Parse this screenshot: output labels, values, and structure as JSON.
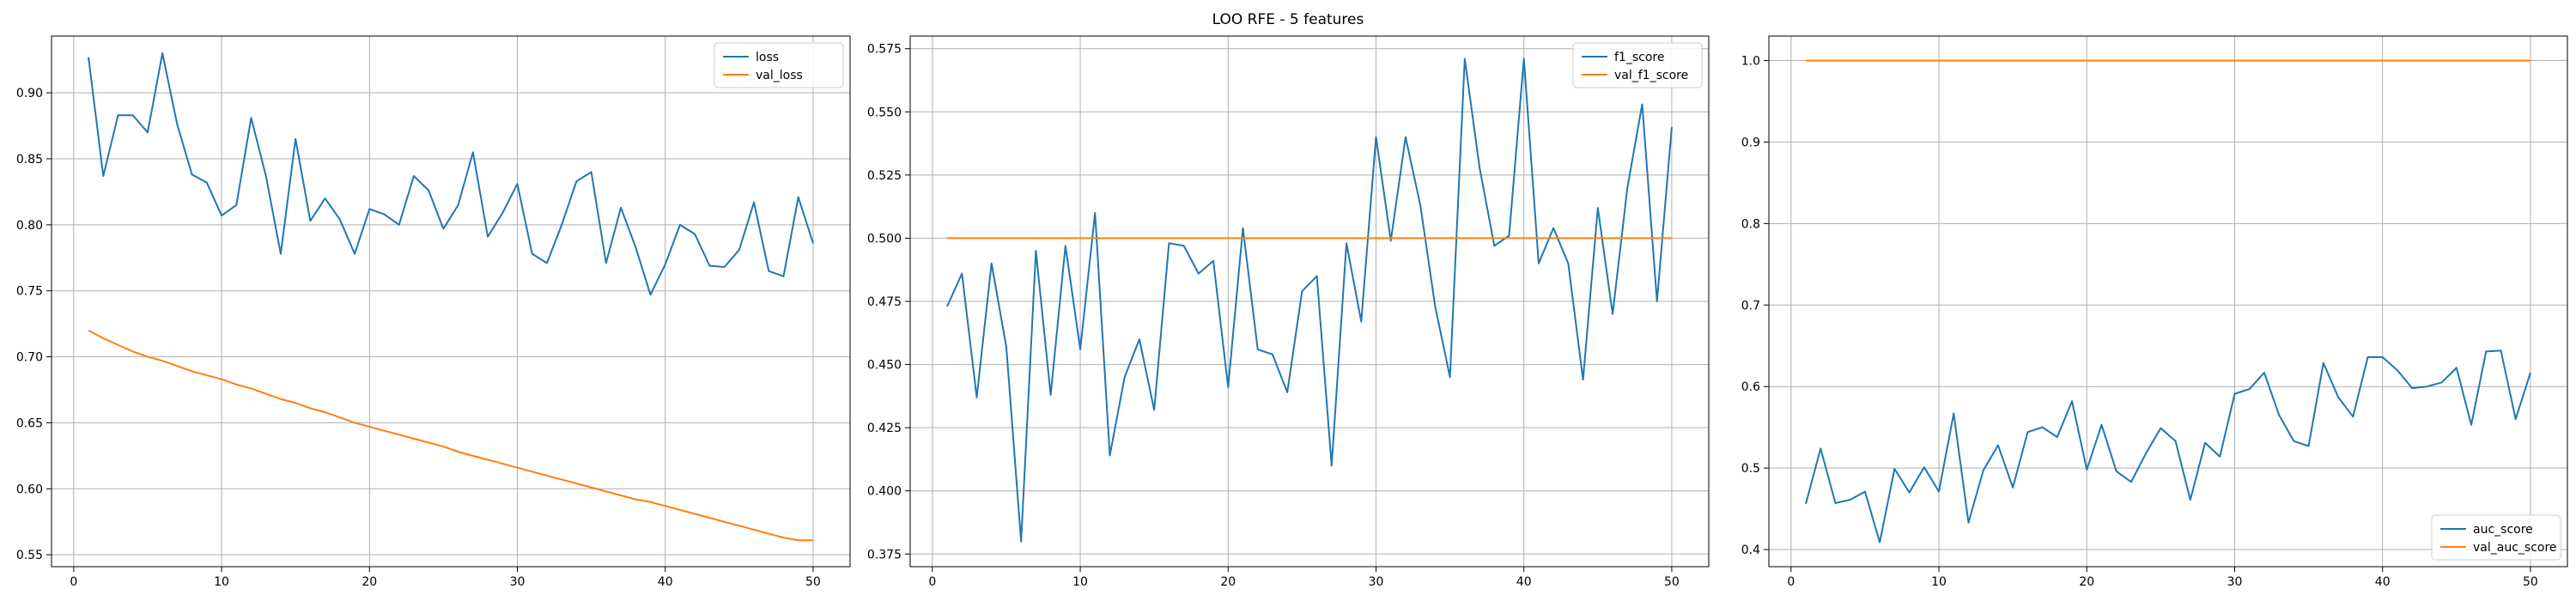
{
  "figure_title": "LOO RFE - 5 features",
  "colors": {
    "series_train": "#1f77b4",
    "series_val": "#ff7f0e",
    "grid": "#b0b0b0",
    "axis": "#000000",
    "legend_border": "#cccccc",
    "background": "#ffffff"
  },
  "chart_data": [
    {
      "type": "line",
      "title": "",
      "xlabel": "",
      "ylabel": "",
      "grid": true,
      "legend_position": "upper right",
      "xlim": [
        -1.5,
        52.5
      ],
      "ylim": [
        0.541,
        0.943
      ],
      "xticks": [
        0,
        10,
        20,
        30,
        40,
        50
      ],
      "yticks": [
        0.55,
        0.6,
        0.65,
        0.7,
        0.75,
        0.8,
        0.85,
        0.9
      ],
      "x": [
        1,
        2,
        3,
        4,
        5,
        6,
        7,
        8,
        9,
        10,
        11,
        12,
        13,
        14,
        15,
        16,
        17,
        18,
        19,
        20,
        21,
        22,
        23,
        24,
        25,
        26,
        27,
        28,
        29,
        30,
        31,
        32,
        33,
        34,
        35,
        36,
        37,
        38,
        39,
        40,
        41,
        42,
        43,
        44,
        45,
        46,
        47,
        48,
        49,
        50
      ],
      "series": [
        {
          "name": "loss",
          "values": [
            0.927,
            0.837,
            0.883,
            0.883,
            0.87,
            0.93,
            0.876,
            0.838,
            0.832,
            0.807,
            0.815,
            0.881,
            0.837,
            0.778,
            0.865,
            0.803,
            0.82,
            0.804,
            0.778,
            0.812,
            0.808,
            0.8,
            0.837,
            0.826,
            0.797,
            0.815,
            0.855,
            0.791,
            0.809,
            0.831,
            0.778,
            0.771,
            0.8,
            0.833,
            0.84,
            0.771,
            0.813,
            0.783,
            0.747,
            0.77,
            0.8,
            0.793,
            0.769,
            0.768,
            0.781,
            0.817,
            0.765,
            0.761,
            0.821,
            0.786
          ]
        },
        {
          "name": "val_loss",
          "values": [
            0.72,
            0.714,
            0.709,
            0.704,
            0.7,
            0.697,
            0.693,
            0.689,
            0.686,
            0.683,
            0.679,
            0.676,
            0.672,
            0.668,
            0.665,
            0.661,
            0.658,
            0.654,
            0.65,
            0.647,
            0.644,
            0.641,
            0.638,
            0.635,
            0.632,
            0.628,
            0.625,
            0.622,
            0.619,
            0.616,
            0.613,
            0.61,
            0.607,
            0.604,
            0.601,
            0.598,
            0.595,
            0.592,
            0.59,
            0.587,
            0.584,
            0.581,
            0.578,
            0.575,
            0.572,
            0.569,
            0.566,
            0.563,
            0.561,
            0.561
          ]
        }
      ]
    },
    {
      "type": "line",
      "title": "",
      "xlabel": "",
      "ylabel": "",
      "grid": true,
      "legend_position": "upper right",
      "xlim": [
        -1.5,
        52.5
      ],
      "ylim": [
        0.37,
        0.58
      ],
      "xticks": [
        0,
        10,
        20,
        30,
        40,
        50
      ],
      "yticks": [
        0.375,
        0.4,
        0.425,
        0.45,
        0.475,
        0.5,
        0.525,
        0.55,
        0.575
      ],
      "x": [
        1,
        2,
        3,
        4,
        5,
        6,
        7,
        8,
        9,
        10,
        11,
        12,
        13,
        14,
        15,
        16,
        17,
        18,
        19,
        20,
        21,
        22,
        23,
        24,
        25,
        26,
        27,
        28,
        29,
        30,
        31,
        32,
        33,
        34,
        35,
        36,
        37,
        38,
        39,
        40,
        41,
        42,
        43,
        44,
        45,
        46,
        47,
        48,
        49,
        50
      ],
      "series": [
        {
          "name": "f1_score",
          "values": [
            0.473,
            0.486,
            0.437,
            0.49,
            0.457,
            0.38,
            0.495,
            0.438,
            0.497,
            0.456,
            0.51,
            0.414,
            0.445,
            0.46,
            0.432,
            0.498,
            0.497,
            0.486,
            0.491,
            0.441,
            0.504,
            0.456,
            0.454,
            0.439,
            0.479,
            0.485,
            0.41,
            0.498,
            0.467,
            0.54,
            0.499,
            0.54,
            0.513,
            0.473,
            0.445,
            0.571,
            0.528,
            0.497,
            0.501,
            0.571,
            0.49,
            0.504,
            0.49,
            0.444,
            0.512,
            0.47,
            0.52,
            0.553,
            0.475,
            0.544
          ]
        },
        {
          "name": "val_f1_score",
          "values": [
            0.5,
            0.5,
            0.5,
            0.5,
            0.5,
            0.5,
            0.5,
            0.5,
            0.5,
            0.5,
            0.5,
            0.5,
            0.5,
            0.5,
            0.5,
            0.5,
            0.5,
            0.5,
            0.5,
            0.5,
            0.5,
            0.5,
            0.5,
            0.5,
            0.5,
            0.5,
            0.5,
            0.5,
            0.5,
            0.5,
            0.5,
            0.5,
            0.5,
            0.5,
            0.5,
            0.5,
            0.5,
            0.5,
            0.5,
            0.5,
            0.5,
            0.5,
            0.5,
            0.5,
            0.5,
            0.5,
            0.5,
            0.5,
            0.5,
            0.5
          ]
        }
      ]
    },
    {
      "type": "line",
      "title": "",
      "xlabel": "",
      "ylabel": "",
      "grid": true,
      "legend_position": "lower right",
      "xlim": [
        -1.5,
        52.5
      ],
      "ylim": [
        0.379,
        1.03
      ],
      "xticks": [
        0,
        10,
        20,
        30,
        40,
        50
      ],
      "yticks": [
        0.4,
        0.5,
        0.6,
        0.7,
        0.8,
        0.9,
        1.0
      ],
      "x": [
        1,
        2,
        3,
        4,
        5,
        6,
        7,
        8,
        9,
        10,
        11,
        12,
        13,
        14,
        15,
        16,
        17,
        18,
        19,
        20,
        21,
        22,
        23,
        24,
        25,
        26,
        27,
        28,
        29,
        30,
        31,
        32,
        33,
        34,
        35,
        36,
        37,
        38,
        39,
        40,
        41,
        42,
        43,
        44,
        45,
        46,
        47,
        48,
        49,
        50
      ],
      "series": [
        {
          "name": "auc_score",
          "values": [
            0.456,
            0.524,
            0.457,
            0.461,
            0.471,
            0.409,
            0.499,
            0.47,
            0.501,
            0.471,
            0.567,
            0.433,
            0.497,
            0.528,
            0.476,
            0.544,
            0.55,
            0.538,
            0.582,
            0.498,
            0.553,
            0.496,
            0.483,
            0.518,
            0.549,
            0.533,
            0.461,
            0.531,
            0.514,
            0.591,
            0.597,
            0.617,
            0.565,
            0.533,
            0.527,
            0.629,
            0.587,
            0.563,
            0.636,
            0.636,
            0.62,
            0.598,
            0.6,
            0.605,
            0.623,
            0.553,
            0.643,
            0.644,
            0.56,
            0.617
          ]
        },
        {
          "name": "val_auc_score",
          "values": [
            1.0,
            1.0,
            1.0,
            1.0,
            1.0,
            1.0,
            1.0,
            1.0,
            1.0,
            1.0,
            1.0,
            1.0,
            1.0,
            1.0,
            1.0,
            1.0,
            1.0,
            1.0,
            1.0,
            1.0,
            1.0,
            1.0,
            1.0,
            1.0,
            1.0,
            1.0,
            1.0,
            1.0,
            1.0,
            1.0,
            1.0,
            1.0,
            1.0,
            1.0,
            1.0,
            1.0,
            1.0,
            1.0,
            1.0,
            1.0,
            1.0,
            1.0,
            1.0,
            1.0,
            1.0,
            1.0,
            1.0,
            1.0,
            1.0,
            1.0
          ]
        }
      ]
    }
  ]
}
